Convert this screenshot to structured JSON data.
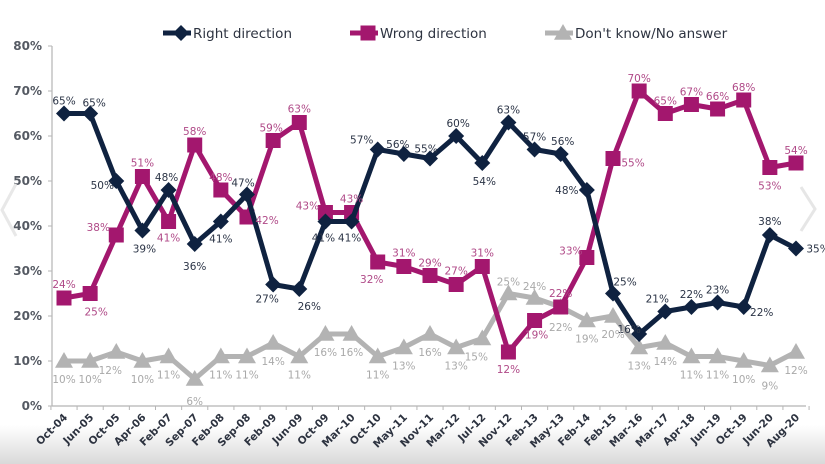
{
  "chart_data": {
    "type": "line",
    "title": "",
    "xlabel": "",
    "ylabel": "",
    "ylim": [
      0,
      80
    ],
    "yticks": [
      "0%",
      "10%",
      "20%",
      "30%",
      "40%",
      "50%",
      "60%",
      "70%",
      "80%"
    ],
    "grid": false,
    "legend_position": "top",
    "categories": [
      "Oct-04",
      "Jun-05",
      "Oct-05",
      "Apr-06",
      "Feb-07",
      "Sep-07",
      "Feb-08",
      "Sep-08",
      "Feb-09",
      "Jun-09",
      "Oct-09",
      "Mar-10",
      "Oct-10",
      "May-11",
      "Nov-11",
      "Mar-12",
      "Jul-12",
      "Nov-12",
      "Feb-13",
      "May-13",
      "Feb-14",
      "Feb-15",
      "Mar-16",
      "Mar-17",
      "Apr-18",
      "Jun-19",
      "Oct-19",
      "Jun-20",
      "Aug-20"
    ],
    "series": [
      {
        "name": "Right direction",
        "color": "#0f2240",
        "label_color": "#2b3446",
        "marker": "diamond",
        "values": [
          65,
          65,
          50,
          39,
          48,
          36,
          41,
          47,
          27,
          26,
          41,
          41,
          57,
          56,
          55,
          60,
          54,
          63,
          57,
          56,
          48,
          25,
          16,
          21,
          22,
          23,
          22,
          38,
          35
        ]
      },
      {
        "name": "Wrong direction",
        "color": "#a3176e",
        "label_color": "#b04a88",
        "marker": "square",
        "values": [
          24,
          25,
          38,
          51,
          41,
          58,
          48,
          42,
          59,
          63,
          43,
          43,
          32,
          31,
          29,
          27,
          31,
          12,
          19,
          22,
          33,
          55,
          70,
          65,
          67,
          66,
          68,
          53,
          54
        ]
      },
      {
        "name": "Don't know/No answer",
        "color": "#b3b3b3",
        "label_color": "#a9a9a9",
        "marker": "triangle",
        "values": [
          10,
          10,
          12,
          10,
          11,
          6,
          11,
          11,
          14,
          11,
          16,
          16,
          11,
          13,
          16,
          13,
          15,
          25,
          24,
          22,
          19,
          20,
          13,
          14,
          11,
          11,
          10,
          9,
          12
        ]
      }
    ]
  },
  "nav": {
    "prev_icon": "chevron-left-icon",
    "next_icon": "chevron-right-icon"
  }
}
